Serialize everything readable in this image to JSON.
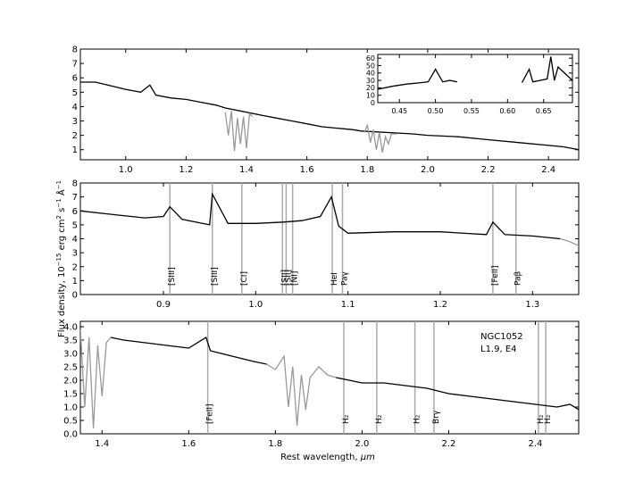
{
  "figure": {
    "xlabel_prefix": "Rest wavelength, ",
    "xlabel_unit": "μm",
    "ylabel": "Flux density, 10",
    "ylabel_exp": "−15",
    "ylabel_units": " erg  cm",
    "ylabel_units_exp": "2",
    "ylabel_units2": "  s",
    "ylabel_units2_exp": "−1",
    "ylabel_units3": "  Å",
    "ylabel_units3_exp": "−1",
    "colors": {
      "spectrum": "#000000",
      "telluric": "#999999",
      "line_marker": "#aaaaaa"
    }
  },
  "chart_data": [
    {
      "type": "line",
      "panel": "top",
      "xlim": [
        0.85,
        2.5
      ],
      "ylim": [
        0.3,
        8
      ],
      "xticks": [
        "1.0",
        "1.2",
        "1.4",
        "1.6",
        "1.8",
        "2.0",
        "2.2",
        "2.4"
      ],
      "yticks": [
        "1",
        "2",
        "3",
        "4",
        "5",
        "6",
        "7",
        "8"
      ],
      "series": [
        {
          "role": "spectrum",
          "x": [
            0.85,
            0.9,
            0.94,
            0.96,
            1.0,
            1.05,
            1.08,
            1.1,
            1.15,
            1.2,
            1.25,
            1.3,
            1.33,
            1.45,
            1.5,
            1.55,
            1.6,
            1.65,
            1.7,
            1.75,
            1.78,
            1.95,
            2.0,
            2.1,
            2.2,
            2.3,
            2.4,
            2.45,
            2.5
          ],
          "y": [
            5.7,
            5.7,
            5.5,
            5.4,
            5.2,
            5.0,
            5.5,
            4.8,
            4.6,
            4.5,
            4.3,
            4.1,
            3.9,
            3.4,
            3.2,
            3.0,
            2.8,
            2.6,
            2.5,
            2.4,
            2.3,
            2.1,
            2.0,
            1.9,
            1.7,
            1.5,
            1.3,
            1.2,
            1.0
          ]
        },
        {
          "role": "telluric",
          "x": [
            1.33,
            1.34,
            1.35,
            1.36,
            1.37,
            1.38,
            1.39,
            1.4,
            1.41,
            1.42
          ],
          "y": [
            3.6,
            2.0,
            3.7,
            0.9,
            3.2,
            1.4,
            3.3,
            1.1,
            3.5,
            3.3
          ]
        },
        {
          "role": "telluric",
          "x": [
            1.79,
            1.8,
            1.81,
            1.82,
            1.83,
            1.84,
            1.85,
            1.86,
            1.87,
            1.88,
            1.9
          ],
          "y": [
            2.2,
            2.7,
            1.5,
            2.4,
            1.0,
            2.2,
            0.8,
            1.9,
            1.4,
            2.1,
            2.1
          ]
        }
      ],
      "inset": {
        "xlim": [
          0.42,
          0.69
        ],
        "ylim": [
          0,
          65
        ],
        "xticks": [
          "0.45",
          "0.50",
          "0.55",
          "0.60",
          "0.65"
        ],
        "yticks": [
          "0",
          "10",
          "20",
          "30",
          "40",
          "50",
          "60"
        ],
        "series": [
          {
            "x": [
              0.42,
              0.44,
              0.46,
              0.48,
              0.49,
              0.5,
              0.51,
              0.52,
              0.53
            ],
            "y": [
              18,
              22,
              25,
              27,
              28,
              45,
              28,
              30,
              28
            ]
          },
          {
            "x": [
              0.62,
              0.63,
              0.635,
              0.645,
              0.655,
              0.66,
              0.665,
              0.67,
              0.69
            ],
            "y": [
              27,
              45,
              28,
              30,
              32,
              62,
              30,
              48,
              30
            ]
          }
        ]
      }
    },
    {
      "type": "line",
      "panel": "middle",
      "xlim": [
        0.81,
        1.35
      ],
      "ylim": [
        0,
        8
      ],
      "xticks": [
        "0.9",
        "1.0",
        "1.1",
        "1.2",
        "1.3"
      ],
      "yticks": [
        "0",
        "1",
        "2",
        "3",
        "4",
        "5",
        "6",
        "7",
        "8"
      ],
      "series": [
        {
          "role": "spectrum",
          "x": [
            0.81,
            0.85,
            0.88,
            0.9,
            0.907,
            0.92,
            0.95,
            0.953,
            0.97,
            1.0,
            1.03,
            1.05,
            1.07,
            1.082,
            1.09,
            1.1,
            1.15,
            1.2,
            1.25,
            1.257,
            1.27,
            1.3,
            1.33
          ],
          "y": [
            6.0,
            5.7,
            5.5,
            5.6,
            6.3,
            5.4,
            5.0,
            7.2,
            5.1,
            5.1,
            5.2,
            5.3,
            5.6,
            7.0,
            4.9,
            4.4,
            4.5,
            4.5,
            4.3,
            5.2,
            4.3,
            4.2,
            4.0
          ]
        },
        {
          "role": "telluric",
          "x": [
            1.33,
            1.34,
            1.35
          ],
          "y": [
            4.0,
            3.8,
            3.5
          ]
        }
      ],
      "lines": [
        {
          "x": 0.907,
          "label": "[SIII]"
        },
        {
          "x": 0.953,
          "label": "[SIII]"
        },
        {
          "x": 0.985,
          "label": "[CI]"
        },
        {
          "x": 1.029,
          "label": "[SII]"
        },
        {
          "x": 1.033,
          "label": "[SII]"
        },
        {
          "x": 1.04,
          "label": "[NI]"
        },
        {
          "x": 1.083,
          "label": "HeI"
        },
        {
          "x": 1.094,
          "label": "Paγ"
        },
        {
          "x": 1.257,
          "label": "[FeII]"
        },
        {
          "x": 1.282,
          "label": "Paβ"
        }
      ]
    },
    {
      "type": "line",
      "panel": "bottom",
      "xlim": [
        1.35,
        2.5
      ],
      "ylim": [
        0,
        4.2
      ],
      "xticks": [
        "1.4",
        "1.6",
        "1.8",
        "2.0",
        "2.2",
        "2.4"
      ],
      "yticks": [
        "0.0",
        "0.5",
        "1.0",
        "1.5",
        "2.0",
        "2.5",
        "3.0",
        "3.5",
        "4.0"
      ],
      "series": [
        {
          "role": "spectrum",
          "x": [
            1.42,
            1.45,
            1.5,
            1.55,
            1.6,
            1.64,
            1.65,
            1.7,
            1.75,
            1.78
          ],
          "y": [
            3.6,
            3.5,
            3.4,
            3.3,
            3.2,
            3.6,
            3.1,
            2.9,
            2.7,
            2.6
          ]
        },
        {
          "role": "telluric",
          "x": [
            1.35,
            1.36,
            1.37,
            1.38,
            1.39,
            1.4,
            1.41,
            1.42
          ],
          "y": [
            3.9,
            1.0,
            3.6,
            0.2,
            3.3,
            1.4,
            3.4,
            3.6
          ]
        },
        {
          "role": "telluric",
          "x": [
            1.78,
            1.8,
            1.82,
            1.83,
            1.84,
            1.85,
            1.86,
            1.87,
            1.88,
            1.9,
            1.92,
            1.94
          ],
          "y": [
            2.6,
            2.4,
            2.9,
            1.0,
            2.5,
            0.3,
            2.2,
            0.9,
            2.1,
            2.5,
            2.2,
            2.1
          ]
        },
        {
          "role": "spectrum",
          "x": [
            1.94,
            2.0,
            2.05,
            2.1,
            2.15,
            2.2,
            2.25,
            2.3,
            2.35,
            2.4,
            2.45,
            2.48,
            2.5
          ],
          "y": [
            2.1,
            1.9,
            1.9,
            1.8,
            1.7,
            1.5,
            1.4,
            1.3,
            1.2,
            1.1,
            1.0,
            1.1,
            0.9
          ]
        }
      ],
      "lines": [
        {
          "x": 1.644,
          "label": "[FeII]"
        },
        {
          "x": 1.958,
          "label": "H₂"
        },
        {
          "x": 2.034,
          "label": "H₂"
        },
        {
          "x": 2.122,
          "label": "H₂"
        },
        {
          "x": 2.166,
          "label": "Brγ"
        },
        {
          "x": 2.407,
          "label": "H₂"
        },
        {
          "x": 2.424,
          "label": "H₂"
        }
      ],
      "annotation": {
        "object": "NGC1052",
        "class": "L1.9,  E4"
      }
    }
  ]
}
